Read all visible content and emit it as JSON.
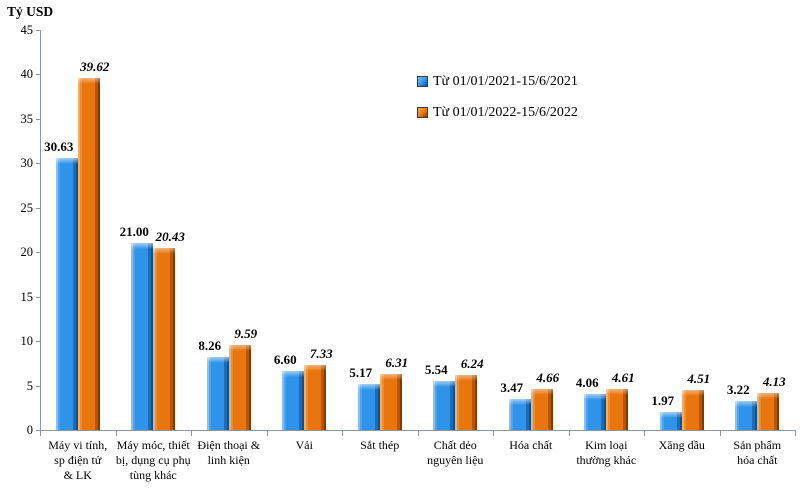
{
  "yaxis_title": "Tỷ USD",
  "chart_data": {
    "type": "bar",
    "title": "",
    "ylabel": "Tỷ USD",
    "xlabel": "",
    "unit": "Tỷ USD",
    "ylim": [
      0,
      45
    ],
    "yticks": [
      0,
      5,
      10,
      15,
      20,
      25,
      30,
      35,
      40,
      45
    ],
    "grid": false,
    "legend_position": "top-right-inside",
    "categories": [
      "Máy vi tính,\nsp điện tử\n& LK",
      "Máy móc, thiết\nbị, dụng cụ phụ\ntùng khác",
      "Điện thoại &\nlinh kiện",
      "Vải",
      "Sắt thép",
      "Chất dẻo\nnguyên liệu",
      "Hóa chất",
      "Kim loại\nthường khác",
      "Xăng dầu",
      "Sản phẩm\nhóa chất"
    ],
    "series": [
      {
        "name": "Từ 01/01/2021-15/6/2021",
        "color": "#2f93ea",
        "values": [
          30.63,
          21.0,
          8.26,
          6.6,
          5.17,
          5.54,
          3.47,
          4.06,
          1.97,
          3.22
        ],
        "labels": [
          "30.63",
          "21.00",
          "8.26",
          "6.60",
          "5.17",
          "5.54",
          "3.47",
          "4.06",
          "1.97",
          "3.22"
        ]
      },
      {
        "name": "Từ 01/01/2022-15/6/2022",
        "color": "#e9750e",
        "values": [
          39.62,
          20.43,
          9.59,
          7.33,
          6.31,
          6.24,
          4.66,
          4.61,
          4.51,
          4.13
        ],
        "labels": [
          "39.62",
          "20.43",
          "9.59",
          "7.33",
          "6.31",
          "6.24",
          "4.66",
          "4.61",
          "4.51",
          "4.13"
        ]
      }
    ]
  }
}
